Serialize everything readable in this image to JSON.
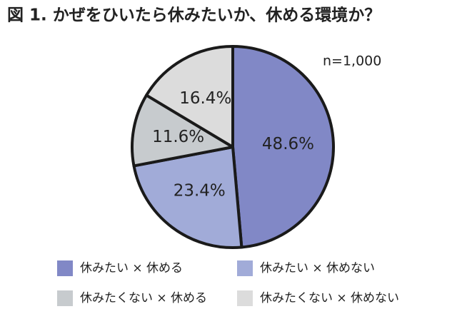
{
  "chart_data": {
    "type": "pie",
    "title": "図 1. かぜをひいたら休みたいか、休める環境か？",
    "annotation": "n=1,000",
    "categories": [
      "休みたい × 休める",
      "休みたい × 休めない",
      "休みたくない × 休める",
      "休みたくない × 休めない"
    ],
    "values": [
      48.6,
      23.4,
      11.6,
      16.4
    ],
    "value_labels": [
      "48.6%",
      "23.4%",
      "11.6%",
      "16.4%"
    ],
    "colors": [
      "#8188c6",
      "#a1abd8",
      "#c7cbce",
      "#dcdcdc"
    ]
  }
}
